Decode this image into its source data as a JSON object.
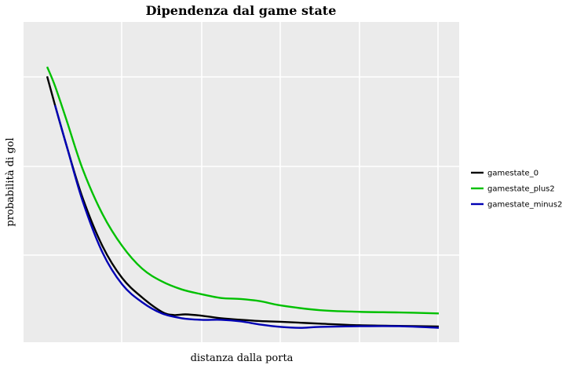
{
  "chart_data": {
    "type": "line",
    "title": "Dipendenza dal game state",
    "xlabel": "distanza dalla porta",
    "ylabel": "probabilità di gol",
    "x_ticks_labeled": false,
    "y_ticks_labeled": false,
    "grid": true,
    "legend_position": "right",
    "xlim": [
      0,
      100
    ],
    "ylim": [
      0,
      100
    ],
    "series": [
      {
        "name": "gamestate_0",
        "color": "#000000",
        "points": [
          [
            1,
            83
          ],
          [
            3,
            74
          ],
          [
            6,
            61
          ],
          [
            10,
            45
          ],
          [
            15,
            30
          ],
          [
            20,
            20
          ],
          [
            25,
            14
          ],
          [
            30,
            9.5
          ],
          [
            33,
            8.5
          ],
          [
            36,
            8.7
          ],
          [
            40,
            8.3
          ],
          [
            45,
            7.5
          ],
          [
            50,
            7
          ],
          [
            55,
            6.6
          ],
          [
            60,
            6.4
          ],
          [
            70,
            5.8
          ],
          [
            80,
            5.3
          ],
          [
            90,
            5.1
          ],
          [
            100,
            4.9
          ]
        ]
      },
      {
        "name": "gamestate_plus2",
        "color": "#00c000",
        "points": [
          [
            1,
            86
          ],
          [
            3,
            80
          ],
          [
            6,
            69
          ],
          [
            10,
            54
          ],
          [
            15,
            40
          ],
          [
            20,
            30
          ],
          [
            25,
            23
          ],
          [
            30,
            19
          ],
          [
            35,
            16.5
          ],
          [
            40,
            15
          ],
          [
            45,
            13.8
          ],
          [
            50,
            13.5
          ],
          [
            55,
            12.8
          ],
          [
            60,
            11.5
          ],
          [
            70,
            10
          ],
          [
            80,
            9.5
          ],
          [
            90,
            9.3
          ],
          [
            100,
            9
          ]
        ]
      },
      {
        "name": "gamestate_minus2",
        "color": "#0000b4",
        "points": [
          [
            3,
            74
          ],
          [
            6,
            61
          ],
          [
            10,
            44
          ],
          [
            15,
            28
          ],
          [
            20,
            18
          ],
          [
            25,
            12.5
          ],
          [
            30,
            9
          ],
          [
            35,
            7.5
          ],
          [
            40,
            7
          ],
          [
            45,
            7
          ],
          [
            50,
            6.5
          ],
          [
            55,
            5.5
          ],
          [
            60,
            4.8
          ],
          [
            65,
            4.5
          ],
          [
            70,
            4.8
          ],
          [
            80,
            5
          ],
          [
            90,
            5
          ],
          [
            100,
            4.5
          ]
        ]
      }
    ]
  }
}
